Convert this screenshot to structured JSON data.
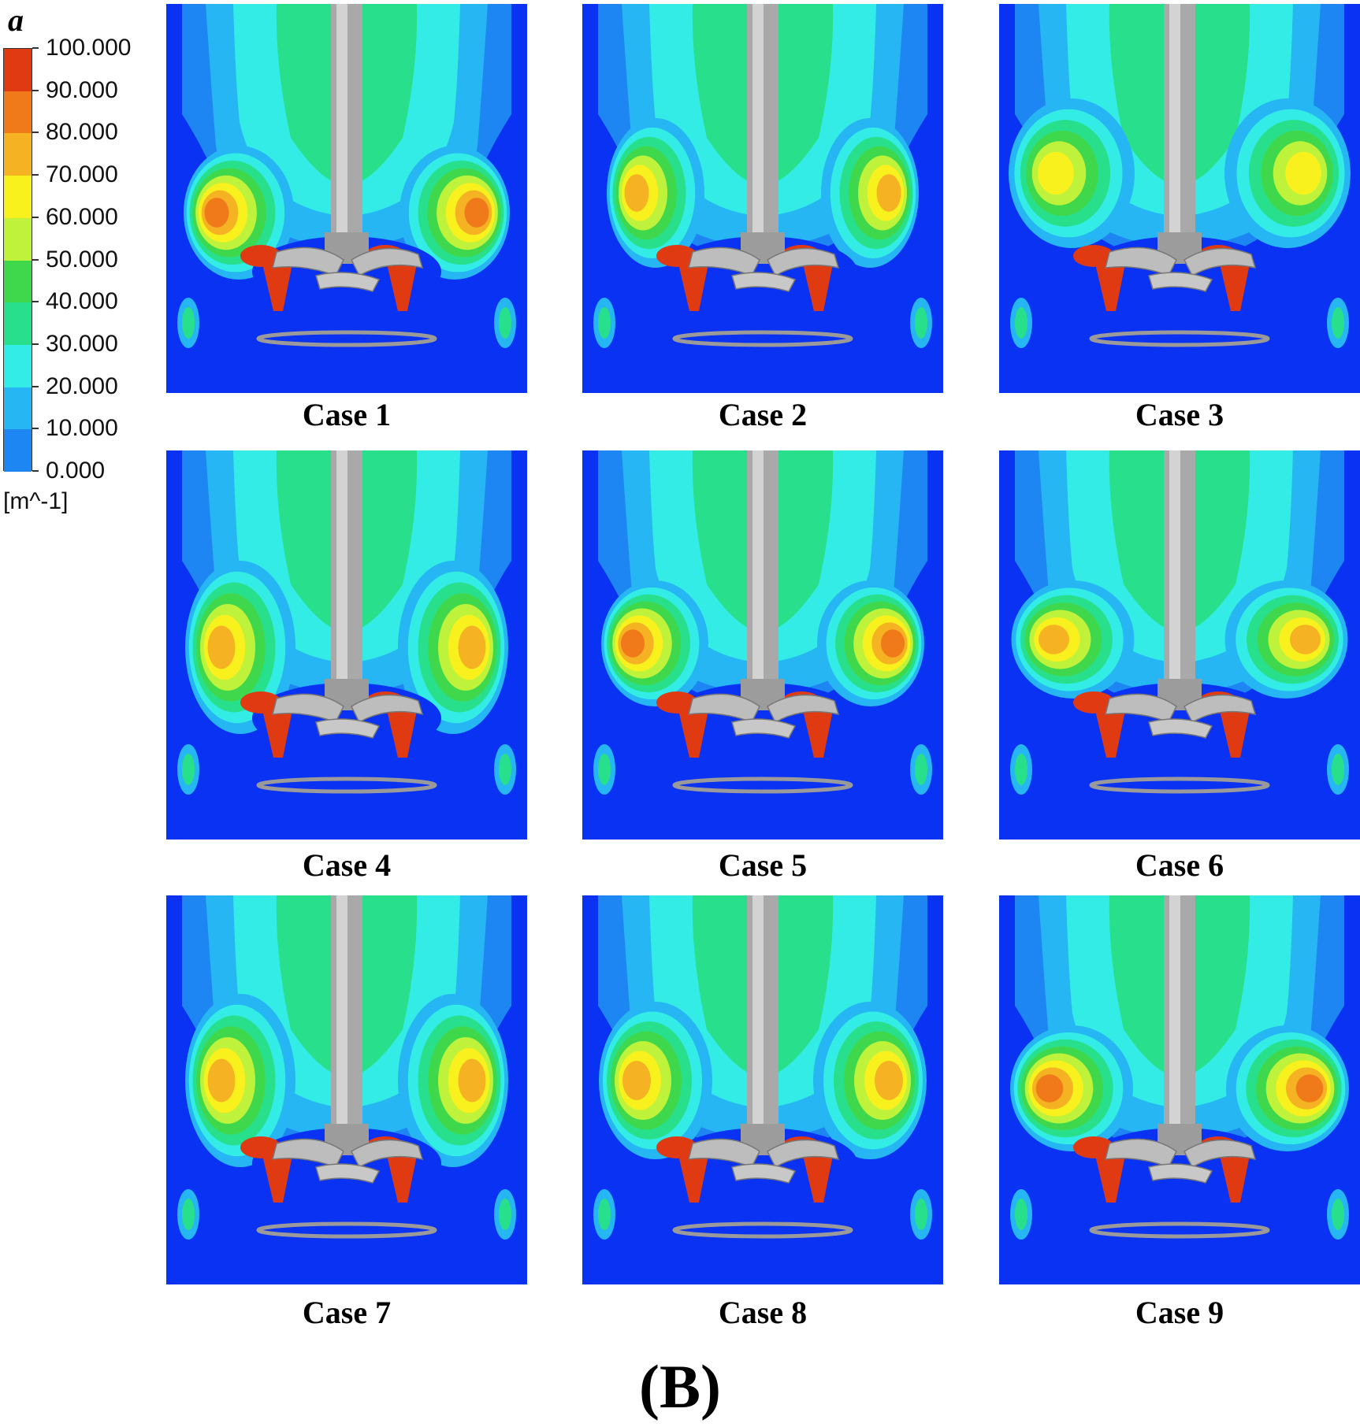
{
  "legend": {
    "variable": "a",
    "unit": "[m^-1]",
    "ticks": [
      "100.000",
      "90.000",
      "80.000",
      "70.000",
      "60.000",
      "50.000",
      "40.000",
      "30.000",
      "20.000",
      "10.000",
      "0.000"
    ],
    "colors": [
      "#e03a12",
      "#f07a1a",
      "#f5b323",
      "#f8f11e",
      "#bff23a",
      "#3fd84c",
      "#28e08c",
      "#33ece5",
      "#25b6f3",
      "#1e86f2",
      "#0a32f2"
    ]
  },
  "panels": [
    {
      "caption": "Case 1"
    },
    {
      "caption": "Case 2"
    },
    {
      "caption": "Case 3"
    },
    {
      "caption": "Case 4"
    },
    {
      "caption": "Case 5"
    },
    {
      "caption": "Case 6"
    },
    {
      "caption": "Case 7"
    },
    {
      "caption": "Case 8"
    },
    {
      "caption": "Case 9"
    }
  ],
  "figure_label": "(B)"
}
